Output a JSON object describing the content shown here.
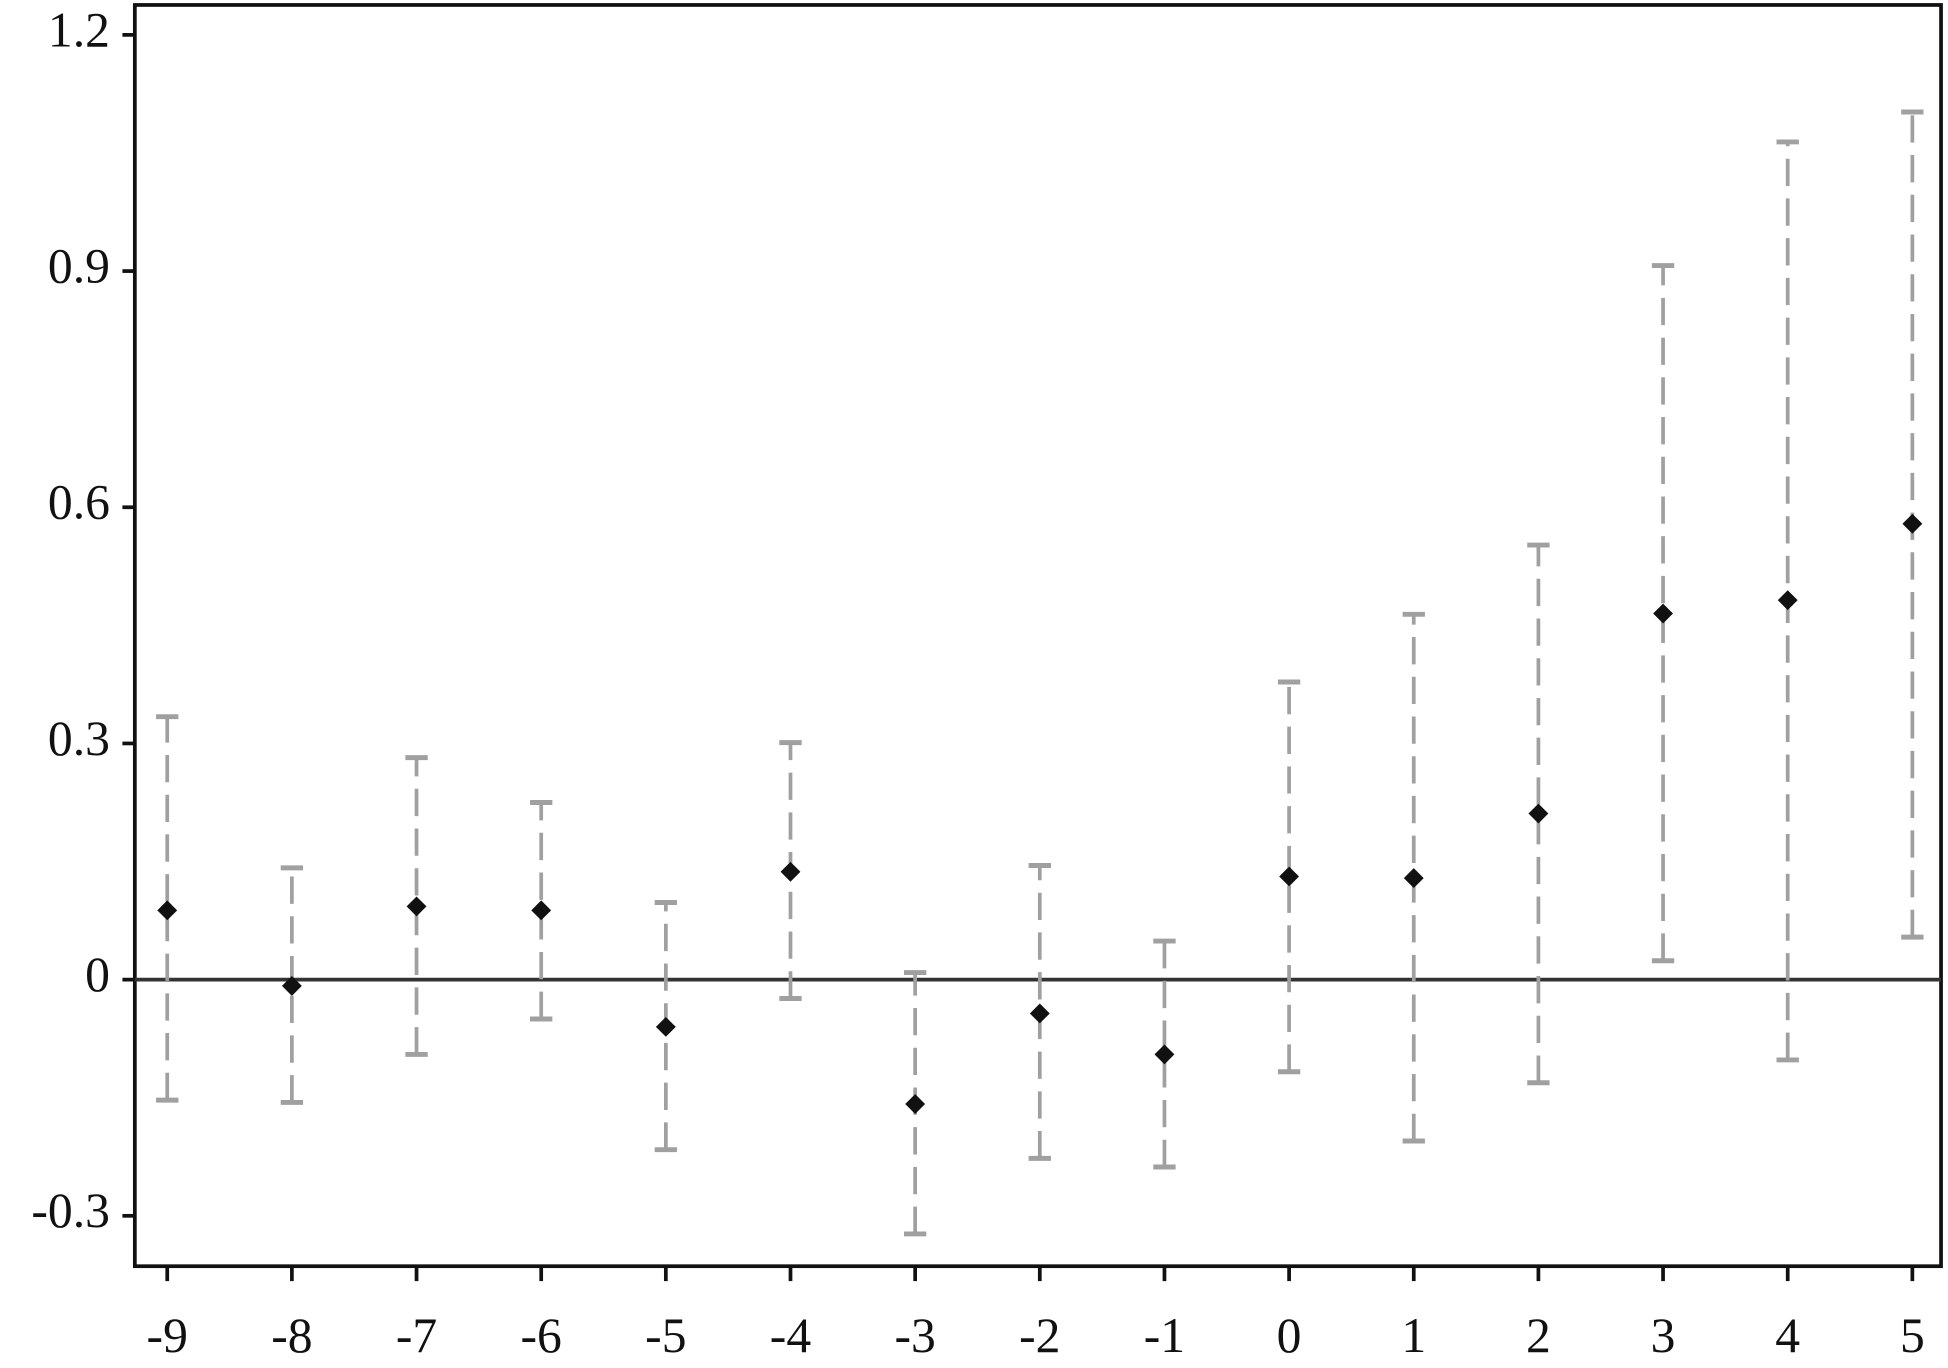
{
  "chart_data": {
    "type": "errorbar",
    "x": [
      -9,
      -8,
      -7,
      -6,
      -5,
      -4,
      -3,
      -2,
      -1,
      0,
      1,
      2,
      3,
      4,
      5
    ],
    "values": [
      0.088,
      -0.008,
      0.093,
      0.088,
      -0.06,
      0.137,
      -0.158,
      -0.043,
      -0.095,
      0.131,
      0.129,
      0.211,
      0.465,
      0.482,
      0.579
    ],
    "lower": [
      -0.153,
      -0.156,
      -0.095,
      -0.05,
      -0.216,
      -0.024,
      -0.323,
      -0.227,
      -0.238,
      -0.117,
      -0.205,
      -0.131,
      0.024,
      -0.102,
      0.054
    ],
    "upper": [
      0.334,
      0.142,
      0.282,
      0.225,
      0.098,
      0.301,
      0.009,
      0.145,
      0.049,
      0.378,
      0.464,
      0.552,
      0.907,
      1.064,
      1.102
    ],
    "point_color": "#111111",
    "bar_color": "#a0a0a0",
    "hline": 0,
    "xlim": [
      -9.26,
      5.23
    ],
    "ylim": [
      -0.364,
      1.238
    ],
    "xticks": [
      -9,
      -8,
      -7,
      -6,
      -5,
      -4,
      -3,
      -2,
      -1,
      0,
      1,
      2,
      3,
      4,
      5
    ],
    "yticks": [
      -0.3,
      0,
      0.3,
      0.6,
      0.9,
      1.2
    ]
  }
}
